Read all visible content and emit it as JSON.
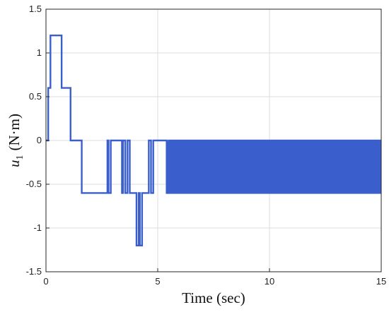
{
  "chart_data": {
    "type": "line",
    "title": "",
    "xlabel": "Time (sec)",
    "ylabel": {
      "symbol": "u",
      "subscript": "1",
      "unit": "(N·m)"
    },
    "xlim": [
      0,
      15
    ],
    "ylim": [
      -1.5,
      1.5
    ],
    "xticks": [
      0,
      5,
      10,
      15
    ],
    "xtick_labels": [
      "0",
      "5",
      "10",
      "15"
    ],
    "yticks": [
      1.5,
      1,
      0.5,
      0,
      -0.5,
      -1,
      -1.5
    ],
    "ytick_labels": [
      "1.5",
      "1",
      "0.5",
      "0",
      "-0.5",
      "-1",
      "-1.5"
    ],
    "grid": true,
    "series": [
      {
        "name": "",
        "color": "#3a5fcd",
        "x": [
          0,
          0.1,
          0.1,
          0.2,
          0.2,
          0.7,
          0.7,
          1.1,
          1.1,
          1.6,
          1.6,
          2.75,
          2.75,
          2.8,
          2.8,
          2.9,
          2.9,
          2.95,
          2.95,
          3.4,
          3.4,
          3.45,
          3.45,
          3.55,
          3.55,
          3.65,
          3.65,
          3.75,
          3.75,
          4.05,
          4.05,
          4.15,
          4.15,
          4.2,
          4.2,
          4.3,
          4.3,
          4.6,
          4.6,
          4.7,
          4.7,
          4.8,
          4.8,
          5.4,
          5.4,
          5.45,
          5.45
        ],
        "y": [
          0,
          0,
          0.6,
          0.6,
          1.2,
          1.2,
          0.6,
          0.6,
          0,
          0,
          -0.6,
          -0.6,
          0,
          0,
          -0.6,
          -0.6,
          0,
          0,
          0,
          0,
          -0.6,
          -0.6,
          0,
          0,
          -0.6,
          -0.6,
          0,
          0,
          -0.6,
          -0.6,
          -1.2,
          -1.2,
          -0.6,
          -0.6,
          -1.2,
          -1.2,
          -0.6,
          -0.6,
          0,
          0,
          -0.6,
          -0.6,
          0,
          0,
          -0.6,
          -0.6,
          0
        ]
      }
    ],
    "chattering": {
      "x_start": 5.45,
      "x_end": 15,
      "y_high": 0,
      "y_low": -0.6
    }
  }
}
